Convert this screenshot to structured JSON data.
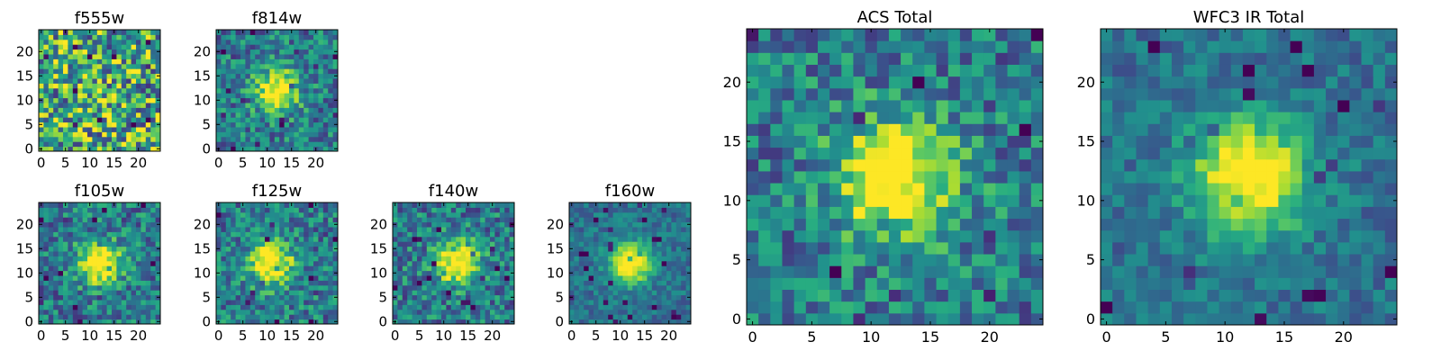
{
  "chart_data": [
    {
      "type": "heatmap",
      "title": "f555w",
      "colormap": "viridis",
      "xlim": [
        0,
        25
      ],
      "ylim": [
        0,
        25
      ],
      "grid": false,
      "xticks": [
        0,
        5,
        10,
        15,
        20
      ],
      "yticks": [
        0,
        5,
        10,
        15,
        20
      ],
      "source_center": null,
      "noise": "high"
    },
    {
      "type": "heatmap",
      "title": "f814w",
      "colormap": "viridis",
      "xlim": [
        0,
        25
      ],
      "ylim": [
        0,
        25
      ],
      "grid": false,
      "xticks": [
        0,
        5,
        10,
        15,
        20
      ],
      "yticks": [
        0,
        5,
        10,
        15,
        20
      ],
      "source_center": [
        12,
        12
      ],
      "noise": "medium"
    },
    {
      "type": "heatmap",
      "title": "f105w",
      "colormap": "viridis",
      "xlim": [
        0,
        25
      ],
      "ylim": [
        0,
        25
      ],
      "grid": false,
      "xticks": [
        0,
        5,
        10,
        15,
        20
      ],
      "yticks": [
        0,
        5,
        10,
        15,
        20
      ],
      "source_center": [
        12,
        12
      ],
      "noise": "medium"
    },
    {
      "type": "heatmap",
      "title": "f125w",
      "colormap": "viridis",
      "xlim": [
        0,
        25
      ],
      "ylim": [
        0,
        25
      ],
      "grid": false,
      "xticks": [
        0,
        5,
        10,
        15,
        20
      ],
      "yticks": [
        0,
        5,
        10,
        15,
        20
      ],
      "source_center": [
        11,
        12
      ],
      "noise": "medium"
    },
    {
      "type": "heatmap",
      "title": "f140w",
      "colormap": "viridis",
      "xlim": [
        0,
        25
      ],
      "ylim": [
        0,
        25
      ],
      "grid": false,
      "xticks": [
        0,
        5,
        10,
        15,
        20
      ],
      "yticks": [
        0,
        5,
        10,
        15,
        20
      ],
      "source_center": [
        13,
        12
      ],
      "noise": "medium"
    },
    {
      "type": "heatmap",
      "title": "f160w",
      "colormap": "viridis",
      "xlim": [
        0,
        25
      ],
      "ylim": [
        0,
        25
      ],
      "grid": false,
      "xticks": [
        0,
        5,
        10,
        15,
        20
      ],
      "yticks": [
        0,
        5,
        10,
        15,
        20
      ],
      "source_center": [
        12,
        12
      ],
      "noise": "low"
    },
    {
      "type": "heatmap",
      "title": "ACS Total",
      "colormap": "viridis",
      "xlim": [
        0,
        25
      ],
      "ylim": [
        0,
        25
      ],
      "grid": false,
      "xticks": [
        0,
        5,
        10,
        15,
        20
      ],
      "yticks": [
        0,
        5,
        10,
        15,
        20
      ],
      "source_center": [
        12,
        12
      ],
      "noise": "medium"
    },
    {
      "type": "heatmap",
      "title": "WFC3 IR Total",
      "colormap": "viridis",
      "xlim": [
        0,
        25
      ],
      "ylim": [
        0,
        25
      ],
      "grid": false,
      "xticks": [
        0,
        5,
        10,
        15,
        20
      ],
      "yticks": [
        0,
        5,
        10,
        15,
        20
      ],
      "source_center": [
        12,
        12
      ],
      "noise": "low"
    }
  ]
}
